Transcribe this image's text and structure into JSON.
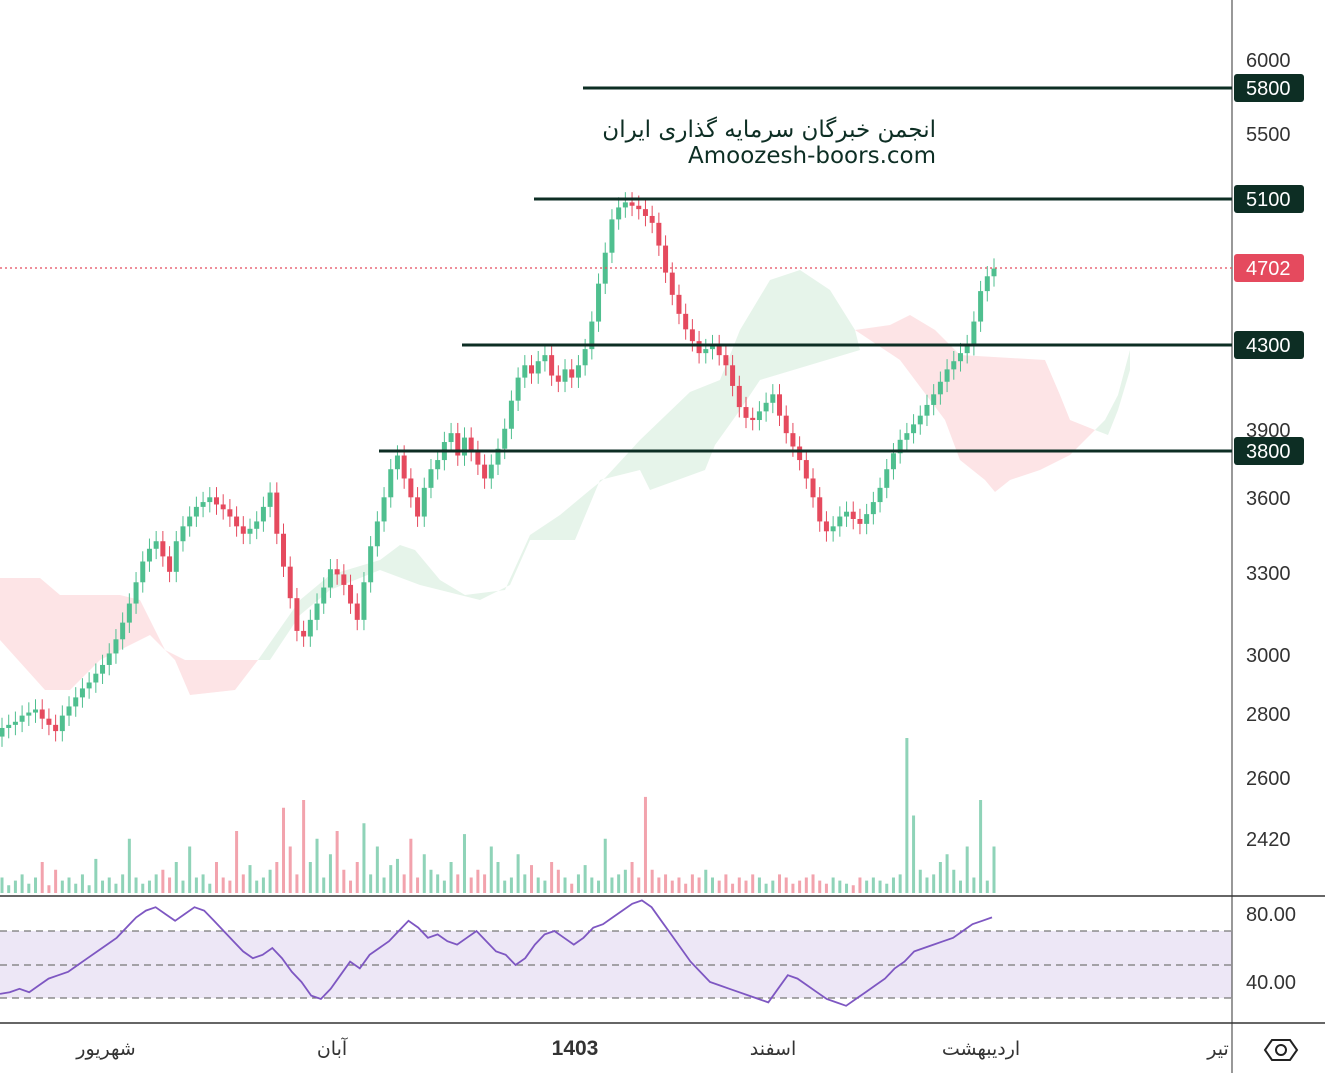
{
  "watermark": {
    "line1": "انجمن خبرگان سرمایه گذاری ایران",
    "line2": "Amoozesh-boors.com"
  },
  "colors": {
    "up": "#4fbf8f",
    "down": "#e54a5e",
    "level_line": "#0d2e24",
    "level_label_bg": "#0d2e24",
    "last_price_bg": "#e54a5e",
    "rsi_line": "#7e57c2",
    "rsi_band": "#ede7f6",
    "cloud_bull": "#e6f4ea",
    "cloud_bear": "#fde4e6"
  },
  "chart_data": {
    "type": "candlestick",
    "price_axis": {
      "scale": "log",
      "tick_labels": [
        "6000",
        "5500",
        "3900",
        "3600",
        "3300",
        "3000",
        "2800",
        "2600",
        "2420"
      ]
    },
    "time_axis": {
      "labels": [
        "شهریور",
        "آبان",
        "1403",
        "اسفند",
        "اردیبهشت",
        "تیر"
      ]
    },
    "horizontal_levels": [
      {
        "label": "5800",
        "value": 5800
      },
      {
        "label": "5100",
        "value": 5100
      },
      {
        "label": "4300",
        "value": 4300
      },
      {
        "label": "3800",
        "value": 3800
      }
    ],
    "last_price": {
      "label": "4702",
      "value": 4702
    },
    "candles_close": [
      2750,
      2760,
      2770,
      2790,
      2800,
      2810,
      2780,
      2760,
      2740,
      2790,
      2820,
      2850,
      2880,
      2900,
      2930,
      2960,
      3000,
      3050,
      3110,
      3180,
      3260,
      3340,
      3390,
      3420,
      3360,
      3300,
      3420,
      3480,
      3520,
      3560,
      3580,
      3600,
      3570,
      3550,
      3520,
      3480,
      3450,
      3470,
      3500,
      3560,
      3620,
      3450,
      3320,
      3200,
      3080,
      3060,
      3120,
      3180,
      3240,
      3310,
      3290,
      3250,
      3180,
      3120,
      3260,
      3400,
      3500,
      3600,
      3720,
      3780,
      3680,
      3600,
      3520,
      3640,
      3720,
      3760,
      3840,
      3880,
      3780,
      3860,
      3800,
      3740,
      3680,
      3740,
      3810,
      3900,
      4030,
      4140,
      4200,
      4160,
      4220,
      4250,
      4150,
      4120,
      4180,
      4140,
      4200,
      4280,
      4420,
      4620,
      4790,
      4980,
      5050,
      5080,
      5060,
      5040,
      5000,
      4960,
      4830,
      4680,
      4560,
      4460,
      4380,
      4320,
      4260,
      4280,
      4300,
      4250,
      4200,
      4100,
      4000,
      3950,
      3940,
      3980,
      4020,
      4060,
      3960,
      3880,
      3820,
      3760,
      3680,
      3600,
      3500,
      3460,
      3480,
      3520,
      3540,
      3510,
      3490,
      3530,
      3580,
      3640,
      3720,
      3790,
      3850,
      3880,
      3920,
      3960,
      4010,
      4060,
      4120,
      4180,
      4220,
      4260,
      4300,
      4420,
      4580,
      4660,
      4702
    ],
    "volume_relative": [
      0.1,
      0.05,
      0.08,
      0.12,
      0.06,
      0.1,
      0.2,
      0.05,
      0.15,
      0.08,
      0.1,
      0.06,
      0.12,
      0.05,
      0.22,
      0.08,
      0.1,
      0.06,
      0.12,
      0.35,
      0.1,
      0.06,
      0.08,
      0.12,
      0.15,
      0.1,
      0.2,
      0.08,
      0.3,
      0.1,
      0.12,
      0.06,
      0.2,
      0.1,
      0.08,
      0.4,
      0.12,
      0.18,
      0.08,
      0.1,
      0.15,
      0.2,
      0.55,
      0.3,
      0.12,
      0.6,
      0.2,
      0.35,
      0.1,
      0.25,
      0.4,
      0.15,
      0.08,
      0.2,
      0.45,
      0.12,
      0.3,
      0.1,
      0.18,
      0.22,
      0.12,
      0.35,
      0.1,
      0.25,
      0.15,
      0.12,
      0.08,
      0.2,
      0.12,
      0.38,
      0.1,
      0.15,
      0.12,
      0.3,
      0.2,
      0.08,
      0.1,
      0.25,
      0.12,
      0.18,
      0.1,
      0.08,
      0.2,
      0.15,
      0.1,
      0.06,
      0.12,
      0.18,
      0.1,
      0.08,
      0.35,
      0.1,
      0.12,
      0.15,
      0.2,
      0.1,
      0.62,
      0.15,
      0.1,
      0.12,
      0.08,
      0.1,
      0.06,
      0.12,
      0.1,
      0.15,
      0.1,
      0.08,
      0.12,
      0.06,
      0.1,
      0.08,
      0.12,
      0.1,
      0.06,
      0.08,
      0.12,
      0.1,
      0.06,
      0.08,
      0.1,
      0.12,
      0.08,
      0.06,
      0.1,
      0.08,
      0.06,
      0.05,
      0.1,
      0.08,
      0.1,
      0.08,
      0.06,
      0.1,
      0.12,
      1.0,
      0.5,
      0.15,
      0.1,
      0.12,
      0.2,
      0.25,
      0.15,
      0.08,
      0.3,
      0.1,
      0.6,
      0.08,
      0.3
    ],
    "rsi": {
      "axis_labels": [
        "80.00",
        "40.00"
      ],
      "levels": [
        70,
        50,
        30
      ],
      "values": [
        33,
        34,
        36,
        34,
        38,
        42,
        44,
        46,
        50,
        54,
        58,
        62,
        66,
        72,
        78,
        82,
        84,
        80,
        76,
        80,
        84,
        82,
        76,
        70,
        64,
        58,
        54,
        56,
        60,
        54,
        46,
        40,
        32,
        30,
        36,
        44,
        52,
        48,
        56,
        60,
        64,
        70,
        76,
        72,
        66,
        68,
        64,
        62,
        66,
        70,
        64,
        58,
        56,
        50,
        54,
        62,
        68,
        70,
        66,
        62,
        66,
        72,
        74,
        78,
        82,
        86,
        88,
        84,
        76,
        68,
        60,
        52,
        46,
        40,
        38,
        36,
        34,
        32,
        30,
        28,
        36,
        44,
        42,
        38,
        34,
        30,
        28,
        26,
        30,
        34,
        38,
        42,
        48,
        52,
        58,
        60,
        62,
        64,
        66,
        70,
        74,
        76,
        78
      ],
      "range": [
        20,
        90
      ]
    }
  }
}
